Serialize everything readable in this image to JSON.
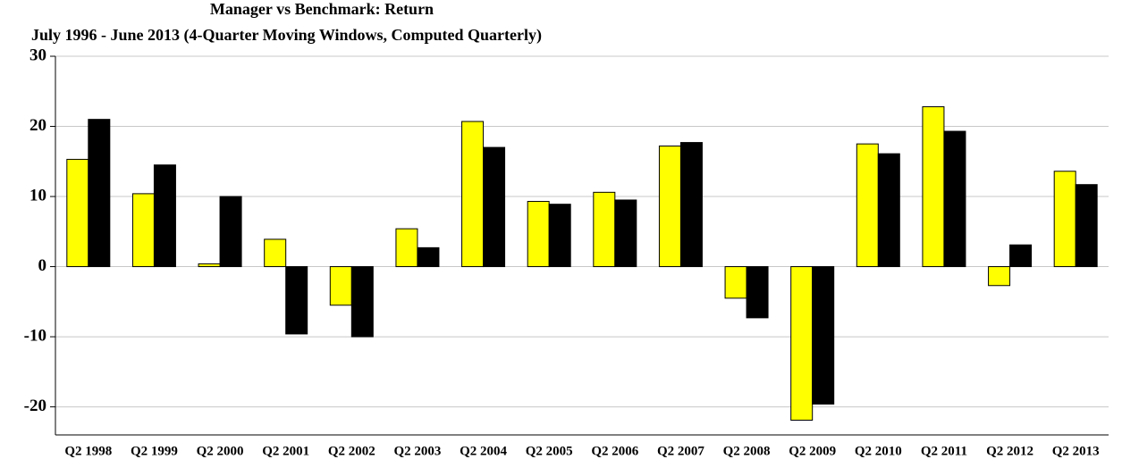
{
  "chart_data": {
    "type": "bar",
    "title": "Manager vs Benchmark: Return",
    "subtitle": "July 1996 - June 2013 (4-Quarter Moving Windows, Computed Quarterly)",
    "categories": [
      "Q2 1998",
      "Q2 1999",
      "Q2 2000",
      "Q2 2001",
      "Q2 2002",
      "Q2 2003",
      "Q2 2004",
      "Q2 2005",
      "Q2 2006",
      "Q2 2007",
      "Q2 2008",
      "Q2 2009",
      "Q2 2010",
      "Q2 2011",
      "Q2 2012",
      "Q2 2013"
    ],
    "series": [
      {
        "color": "#ffff00",
        "values": [
          15.3,
          10.4,
          0.4,
          3.9,
          -5.5,
          5.4,
          20.7,
          9.3,
          10.6,
          17.2,
          -4.5,
          -21.9,
          17.5,
          22.8,
          -2.7,
          13.6
        ]
      },
      {
        "color": "#000000",
        "values": [
          21.0,
          14.5,
          10.0,
          -9.6,
          -10.0,
          2.7,
          17.0,
          8.9,
          9.5,
          17.7,
          -7.3,
          -19.6,
          16.1,
          19.3,
          3.1,
          11.7
        ]
      }
    ],
    "ylim": [
      -24,
      30
    ],
    "yticks": [
      -20,
      -10,
      0,
      10,
      20,
      30
    ],
    "grid": true
  }
}
